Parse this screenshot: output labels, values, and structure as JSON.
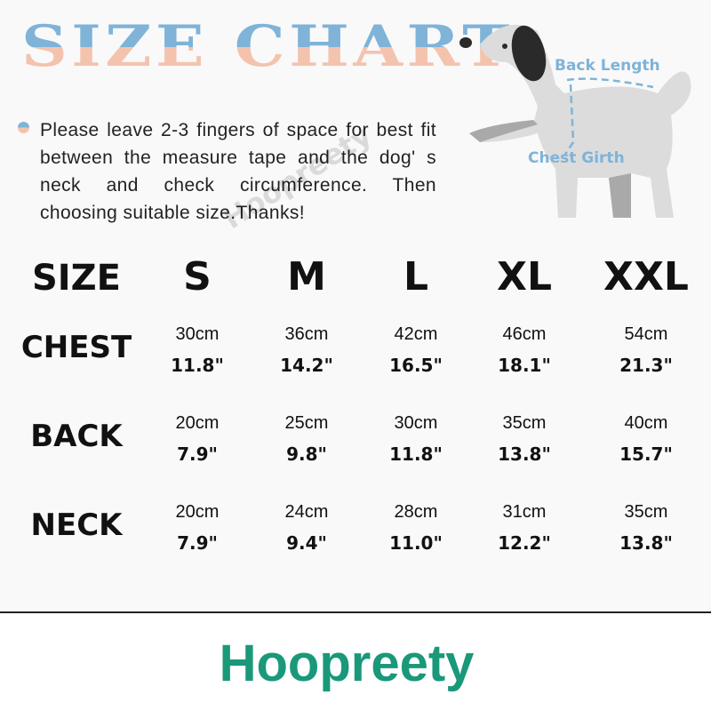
{
  "title": "SIZE CHART",
  "note": "Please leave 2-3 fingers of space for best fit between the measure tape and the dog' s neck and check circumference. Then choosing suitable size.Thanks!",
  "watermark": "Hoopreety",
  "diagram": {
    "back_label": "Back Length",
    "chest_label": "Chest Girth"
  },
  "colors": {
    "title_top": "#7fb3d8",
    "title_bottom": "#f4c3ae",
    "brand": "#1a987a"
  },
  "table": {
    "header": "SIZE",
    "sizes": [
      "S",
      "M",
      "L",
      "XL",
      "XXL"
    ],
    "rows": [
      {
        "label": "CHEST",
        "cm": [
          "30cm",
          "36cm",
          "42cm",
          "46cm",
          "54cm"
        ],
        "in": [
          "11.8\"",
          "14.2\"",
          "16.5\"",
          "18.1\"",
          "21.3\""
        ]
      },
      {
        "label": "BACK",
        "cm": [
          "20cm",
          "25cm",
          "30cm",
          "35cm",
          "40cm"
        ],
        "in": [
          "7.9\"",
          "9.8\"",
          "11.8\"",
          "13.8\"",
          "15.7\""
        ]
      },
      {
        "label": "NECK",
        "cm": [
          "20cm",
          "24cm",
          "28cm",
          "31cm",
          "35cm"
        ],
        "in": [
          "7.9\"",
          "9.4\"",
          "11.0\"",
          "12.2\"",
          "13.8\""
        ]
      }
    ]
  },
  "brand": "Hoopreety"
}
